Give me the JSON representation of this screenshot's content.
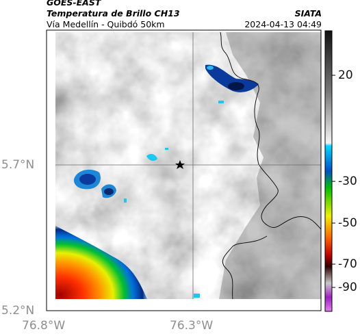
{
  "header": {
    "satellite": "GOES-EAST",
    "product": "Temperatura de Brillo CH13",
    "route": "Vía Medellín - Quibdó 50km",
    "organization": "SIATA",
    "timestamp": "2024-04-13 04:49"
  },
  "axes": {
    "lat_labels": [
      "5.7°N",
      "5.2°N"
    ],
    "lon_labels": [
      "76.8°W",
      "76.3°W"
    ]
  },
  "colorbar": {
    "ticks": [
      "20",
      "-30",
      "-50",
      "-70",
      "-90"
    ],
    "colors": [
      "#111111",
      "#9a9a9a",
      "#f2f2f2",
      "#00d8ff",
      "#0050c8",
      "#00c000",
      "#f0f000",
      "#ff6000",
      "#c00000",
      "#300000",
      "#b0b0b0",
      "#a020c0"
    ]
  },
  "map": {
    "marker": "star",
    "cloud_color_cold": "#0a2f8c",
    "cloud_color_warm": "#e00000"
  }
}
